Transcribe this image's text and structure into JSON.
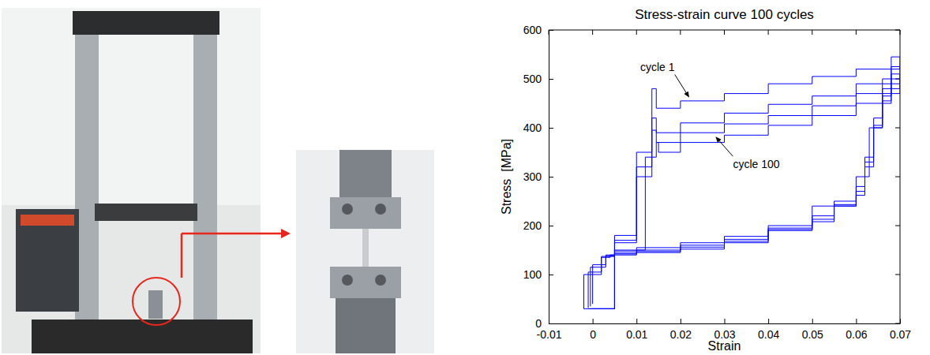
{
  "chart_data": {
    "type": "line",
    "title": "Stress-strain curve 100 cycles",
    "x_label": "Strain",
    "y_label": "Stress  [MPa]",
    "xlim": [
      -0.01,
      0.07
    ],
    "xticks": [
      -0.01,
      0,
      0.01,
      0.02,
      0.03,
      0.04,
      0.05,
      0.06,
      0.07
    ],
    "ylim": [
      0,
      600
    ],
    "yticks": [
      0,
      100,
      200,
      300,
      400,
      500,
      600
    ],
    "grid": false,
    "series": [
      {
        "color": "#0000ff",
        "x": [
          0,
          0.005,
          0.01,
          0.0135,
          0.0145,
          0.02,
          0.03,
          0.04,
          0.05,
          0.06,
          0.07,
          0.068,
          0.066,
          0.064,
          0.062,
          0.06,
          0.055,
          0.05,
          0.04,
          0.03,
          0.02,
          0.01,
          0.005,
          0.003,
          0
        ],
        "values": [
          30,
          180,
          350,
          480,
          440,
          455,
          470,
          490,
          505,
          520,
          545,
          480,
          420,
          340,
          280,
          250,
          220,
          200,
          178,
          165,
          155,
          148,
          140,
          120,
          40
        ]
      },
      {
        "color": "#0000ff",
        "x": [
          -0.0005,
          0.005,
          0.01,
          0.0135,
          0.0145,
          0.02,
          0.03,
          0.04,
          0.05,
          0.06,
          0.07,
          0.068,
          0.066,
          0.064,
          0.062,
          0.06,
          0.055,
          0.05,
          0.04,
          0.03,
          0.02,
          0.01,
          0.005,
          0.003,
          -0.0005
        ],
        "values": [
          30,
          170,
          320,
          420,
          390,
          410,
          430,
          448,
          465,
          490,
          525,
          465,
          405,
          330,
          270,
          243,
          213,
          195,
          172,
          160,
          150,
          144,
          138,
          115,
          35
        ]
      },
      {
        "color": "#0000ff",
        "x": [
          -0.001,
          0.005,
          0.01,
          0.0135,
          0.0145,
          0.02,
          0.03,
          0.04,
          0.05,
          0.06,
          0.07,
          0.068,
          0.066,
          0.064,
          0.062,
          0.06,
          0.055,
          0.05,
          0.04,
          0.03,
          0.02,
          0.01,
          0.005,
          0.002,
          -0.001
        ],
        "values": [
          30,
          165,
          300,
          395,
          370,
          390,
          408,
          425,
          445,
          470,
          510,
          455,
          400,
          320,
          262,
          240,
          208,
          192,
          168,
          156,
          147,
          142,
          137,
          105,
          32
        ]
      },
      {
        "color": "#0000ff",
        "x": [
          -0.002,
          0.005,
          0.012,
          0.0145,
          0.015,
          0.02,
          0.03,
          0.04,
          0.05,
          0.06,
          0.068,
          0.07,
          0.066,
          0.063,
          0.06,
          0.05,
          0.04,
          0.03,
          0.02,
          0.01,
          0.004,
          0.002,
          -0.002
        ],
        "values": [
          30,
          150,
          340,
          370,
          350,
          370,
          385,
          405,
          425,
          450,
          480,
          500,
          400,
          300,
          240,
          190,
          165,
          152,
          145,
          140,
          135,
          100,
          30
        ]
      }
    ],
    "annotations": [
      {
        "text": "cycle 1",
        "x": 0.022,
        "y": 462
      },
      {
        "text": "cycle 100",
        "x": 0.028,
        "y": 382
      }
    ]
  }
}
